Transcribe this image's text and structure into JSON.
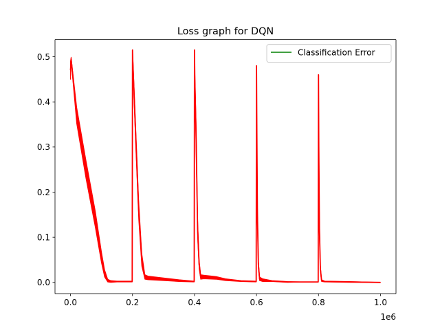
{
  "chart_data": {
    "type": "line",
    "title": "Loss graph for DQN",
    "xlabel": "",
    "ylabel": "",
    "x_offset_label": "1e6",
    "xlim": [
      -0.05,
      1.05
    ],
    "ylim": [
      -0.025,
      0.538
    ],
    "xticks": [
      0.0,
      0.2,
      0.4,
      0.6,
      0.8,
      1.0
    ],
    "xtick_labels": [
      "0.0",
      "0.2",
      "0.4",
      "0.6",
      "0.8",
      "1.0"
    ],
    "yticks": [
      0.0,
      0.1,
      0.2,
      0.3,
      0.4,
      0.5
    ],
    "ytick_labels": [
      "0.0",
      "0.1",
      "0.2",
      "0.3",
      "0.4",
      "0.5"
    ],
    "grid": false,
    "legend_position": "upper right",
    "legend_entries": [
      {
        "label": "Classification Error",
        "color": "#008000"
      }
    ],
    "series": [
      {
        "name": "",
        "color": "#ff0000",
        "x": [
          0.0,
          0.002,
          0.02,
          0.05,
          0.08,
          0.1,
          0.11,
          0.12,
          0.13,
          0.15,
          0.18,
          0.199,
          0.2,
          0.201,
          0.21,
          0.22,
          0.23,
          0.24,
          0.25,
          0.3,
          0.35,
          0.399,
          0.4,
          0.401,
          0.405,
          0.41,
          0.415,
          0.42,
          0.43,
          0.47,
          0.5,
          0.55,
          0.599,
          0.6,
          0.601,
          0.603,
          0.606,
          0.61,
          0.62,
          0.65,
          0.7,
          0.75,
          0.799,
          0.8,
          0.801,
          0.803,
          0.806,
          0.81,
          0.82,
          0.9,
          1.0
        ],
        "y": [
          0.47,
          0.495,
          0.37,
          0.25,
          0.14,
          0.055,
          0.02,
          0.004,
          0.002,
          0.002,
          0.002,
          0.002,
          0.515,
          0.49,
          0.33,
          0.16,
          0.05,
          0.012,
          0.01,
          0.007,
          0.004,
          0.002,
          0.515,
          0.45,
          0.33,
          0.12,
          0.04,
          0.012,
          0.012,
          0.01,
          0.006,
          0.003,
          0.002,
          0.48,
          0.35,
          0.15,
          0.04,
          0.008,
          0.005,
          0.003,
          0.001,
          0.001,
          0.001,
          0.46,
          0.3,
          0.12,
          0.03,
          0.004,
          0.002,
          0.001,
          0.0
        ],
        "band_half_width": [
          0.02,
          0.004,
          0.018,
          0.02,
          0.018,
          0.012,
          0.008,
          0.003,
          0.002,
          0.001,
          0.001,
          0.001,
          0.0,
          0.012,
          0.02,
          0.02,
          0.014,
          0.005,
          0.004,
          0.003,
          0.002,
          0.001,
          0.0,
          0.02,
          0.025,
          0.02,
          0.01,
          0.005,
          0.004,
          0.003,
          0.002,
          0.001,
          0.001,
          0.0,
          0.02,
          0.02,
          0.01,
          0.004,
          0.003,
          0.001,
          0.001,
          0.0,
          0.0,
          0.0,
          0.02,
          0.02,
          0.008,
          0.002,
          0.001,
          0.001,
          0.0
        ]
      }
    ]
  }
}
